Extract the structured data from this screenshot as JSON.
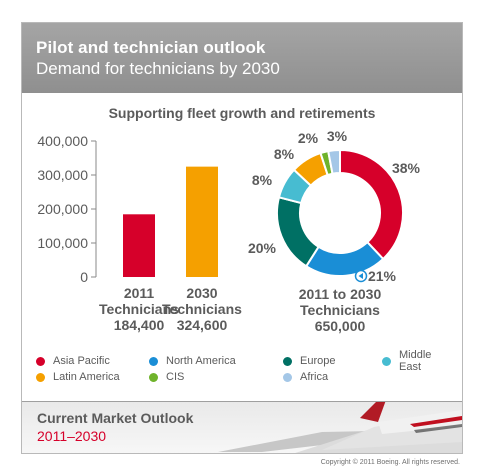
{
  "header": {
    "title": "Pilot and technician outlook",
    "subtitle": "Demand for technicians by 2030"
  },
  "footer": {
    "title": "Current Market Outlook",
    "years": "2011–2030"
  },
  "copyright": "Copyright © 2011 Boeing. All rights reserved.",
  "colors": {
    "asia_pacific": "#d6002a",
    "north_america": "#1a8ed6",
    "europe": "#007064",
    "middle_east": "#47bcd1",
    "latin_america": "#f5a000",
    "cis": "#6fb32b",
    "africa": "#a4c7e7"
  },
  "legend": [
    {
      "label": "Asia Pacific",
      "color": "#d6002a"
    },
    {
      "label": "North America",
      "color": "#1a8ed6"
    },
    {
      "label": "Europe",
      "color": "#007064"
    },
    {
      "label": "Middle East",
      "color": "#47bcd1"
    },
    {
      "label": "Latin America",
      "color": "#f5a000"
    },
    {
      "label": "CIS",
      "color": "#6fb32b"
    },
    {
      "label": "Africa",
      "color": "#a4c7e7"
    }
  ],
  "chart_data": [
    {
      "type": "bar",
      "title": "Supporting fleet growth and retirements",
      "categories": [
        "2011 Technicians",
        "2030 Technicians"
      ],
      "category_lines": [
        [
          "2011",
          "Technicians"
        ],
        [
          "2030",
          "Technicians"
        ]
      ],
      "values": [
        184400,
        324600
      ],
      "value_labels": [
        "184,400",
        "324,600"
      ],
      "bar_colors": [
        "#d6002a",
        "#f5a000"
      ],
      "ylim": [
        0,
        400000
      ],
      "yticks": [
        0,
        100000,
        200000,
        300000,
        400000
      ],
      "ytick_labels": [
        "0",
        "100,000",
        "200,000",
        "300,000",
        "400,000"
      ],
      "grid": false
    },
    {
      "type": "pie",
      "donut": true,
      "label_lines": [
        "2011 to 2030",
        "Technicians",
        "650,000"
      ],
      "slices": [
        {
          "name": "Asia Pacific",
          "value": 38,
          "label": "38%",
          "color": "#d6002a"
        },
        {
          "name": "North America",
          "value": 21,
          "label": "21%",
          "color": "#1a8ed6"
        },
        {
          "name": "Europe",
          "value": 20,
          "label": "20%",
          "color": "#007064"
        },
        {
          "name": "Middle East",
          "value": 8,
          "label": "8%",
          "color": "#47bcd1"
        },
        {
          "name": "Latin America",
          "value": 8,
          "label": "8%",
          "color": "#f5a000"
        },
        {
          "name": "CIS",
          "value": 2,
          "label": "2%",
          "color": "#6fb32b"
        },
        {
          "name": "Africa",
          "value": 3,
          "label": "3%",
          "color": "#a4c7e7"
        }
      ]
    }
  ]
}
